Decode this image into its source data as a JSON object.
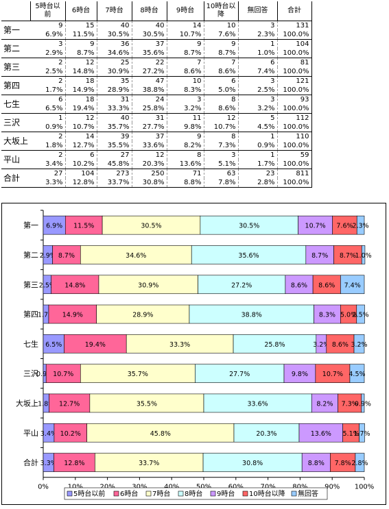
{
  "table": {
    "headers": [
      "5時台以前",
      "6時台",
      "7時台",
      "8時台",
      "9時台",
      "10時台以降",
      "無回答",
      "合計"
    ],
    "rows": [
      {
        "label": "第一",
        "counts": [
          "9",
          "15",
          "40",
          "40",
          "14",
          "10",
          "3",
          "131"
        ],
        "pcts": [
          "6.9%",
          "11.5%",
          "30.5%",
          "30.5%",
          "10.7%",
          "7.6%",
          "2.3%",
          "100.0%"
        ]
      },
      {
        "label": "第二",
        "counts": [
          "3",
          "9",
          "36",
          "37",
          "9",
          "9",
          "1",
          "104"
        ],
        "pcts": [
          "2.9%",
          "8.7%",
          "34.6%",
          "35.6%",
          "8.7%",
          "8.7%",
          "1.0%",
          "100.0%"
        ]
      },
      {
        "label": "第三",
        "counts": [
          "2",
          "12",
          "25",
          "22",
          "7",
          "7",
          "6",
          "81"
        ],
        "pcts": [
          "2.5%",
          "14.8%",
          "30.9%",
          "27.2%",
          "8.6%",
          "8.6%",
          "7.4%",
          "100.0%"
        ]
      },
      {
        "label": "第四",
        "counts": [
          "2",
          "18",
          "35",
          "47",
          "10",
          "6",
          "3",
          "121"
        ],
        "pcts": [
          "1.7%",
          "14.9%",
          "28.9%",
          "38.8%",
          "8.3%",
          "5.0%",
          "2.5%",
          "100.0%"
        ]
      },
      {
        "label": "七生",
        "counts": [
          "6",
          "18",
          "31",
          "24",
          "3",
          "8",
          "3",
          "93"
        ],
        "pcts": [
          "6.5%",
          "19.4%",
          "33.3%",
          "25.8%",
          "3.2%",
          "8.6%",
          "3.2%",
          "100.0%"
        ]
      },
      {
        "label": "三沢",
        "counts": [
          "1",
          "12",
          "40",
          "31",
          "11",
          "12",
          "5",
          "112"
        ],
        "pcts": [
          "0.9%",
          "10.7%",
          "35.7%",
          "27.7%",
          "9.8%",
          "10.7%",
          "4.5%",
          "100.0%"
        ]
      },
      {
        "label": "大坂上",
        "counts": [
          "2",
          "14",
          "39",
          "37",
          "9",
          "8",
          "1",
          "110"
        ],
        "pcts": [
          "1.8%",
          "12.7%",
          "35.5%",
          "33.6%",
          "8.2%",
          "7.3%",
          "0.9%",
          "100.0%"
        ]
      },
      {
        "label": "平山",
        "counts": [
          "2",
          "6",
          "27",
          "12",
          "8",
          "3",
          "1",
          "59"
        ],
        "pcts": [
          "3.4%",
          "10.2%",
          "45.8%",
          "20.3%",
          "13.6%",
          "5.1%",
          "1.7%",
          "100.0%"
        ]
      },
      {
        "label": "合計",
        "counts": [
          "27",
          "104",
          "273",
          "250",
          "71",
          "63",
          "23",
          "811"
        ],
        "pcts": [
          "3.3%",
          "12.8%",
          "33.7%",
          "30.8%",
          "8.8%",
          "7.8%",
          "2.8%",
          "100.0%"
        ]
      }
    ]
  },
  "chart_data": {
    "type": "bar",
    "orientation": "horizontal",
    "stacked": true,
    "categories": [
      "第一",
      "第二",
      "第三",
      "第四",
      "七生",
      "三沢",
      "大坂上",
      "平山",
      "合計"
    ],
    "series": [
      {
        "name": "5時台以前",
        "color": "#9999ff",
        "values": [
          6.9,
          2.9,
          2.5,
          1.7,
          6.5,
          0.9,
          1.8,
          3.4,
          3.3
        ]
      },
      {
        "name": "6時台",
        "color": "#ff6699",
        "values": [
          11.5,
          8.7,
          14.8,
          14.9,
          19.4,
          10.7,
          12.7,
          10.2,
          12.8
        ]
      },
      {
        "name": "7時台",
        "color": "#ffffcc",
        "values": [
          30.5,
          34.6,
          30.9,
          28.9,
          33.3,
          35.7,
          35.5,
          45.8,
          33.7
        ]
      },
      {
        "name": "8時台",
        "color": "#ccffff",
        "values": [
          30.5,
          35.6,
          27.2,
          38.8,
          25.8,
          27.7,
          33.6,
          20.3,
          30.8
        ]
      },
      {
        "name": "9時台",
        "color": "#cc99ff",
        "values": [
          10.7,
          8.7,
          8.6,
          8.3,
          3.2,
          9.8,
          8.2,
          13.6,
          8.8
        ]
      },
      {
        "name": "10時台以降",
        "color": "#ff6666",
        "values": [
          7.6,
          8.7,
          8.6,
          5.0,
          8.6,
          10.7,
          7.3,
          5.1,
          7.8
        ]
      },
      {
        "name": "無回答",
        "color": "#99ccff",
        "values": [
          2.3,
          1.0,
          7.4,
          2.5,
          3.2,
          4.5,
          0.9,
          1.7,
          2.8
        ]
      }
    ],
    "data_labels": [
      [
        "6.9%",
        "11.5%",
        "30.5%",
        "30.5%",
        "10.7%",
        "7.6%",
        "2.3%"
      ],
      [
        "2.9%",
        "8.7%",
        "34.6%",
        "35.6%",
        "8.7%",
        "8.7%",
        "1.0%"
      ],
      [
        "2.5%",
        "14.8%",
        "30.9%",
        "27.2%",
        "8.6%",
        "8.6%",
        "7.4%"
      ],
      [
        "1.7%",
        "14.9%",
        "28.9%",
        "38.8%",
        "8.3%",
        "5.0%",
        "2.5%"
      ],
      [
        "6.5%",
        "19.4%",
        "33.3%",
        "25.8%",
        "3.2%",
        "8.6%",
        "3.2%"
      ],
      [
        "0.9%",
        "10.7%",
        "35.7%",
        "27.7%",
        "9.8%",
        "10.7%",
        "4.5%"
      ],
      [
        "1.8%",
        "12.7%",
        "35.5%",
        "33.6%",
        "8.2%",
        "7.3%",
        "0.9%"
      ],
      [
        "3.4%",
        "10.2%",
        "45.8%",
        "20.3%",
        "13.6%",
        "5.1%",
        "1.7%"
      ],
      [
        "3.3%",
        "12.8%",
        "33.7%",
        "30.8%",
        "8.8%",
        "7.8%",
        "2.8%"
      ]
    ],
    "xlim": [
      0,
      100
    ],
    "x_ticks": [
      "0%",
      "10%",
      "20%",
      "30%",
      "40%",
      "50%",
      "60%",
      "70%",
      "80%",
      "90%",
      "100%"
    ],
    "grid": false,
    "legend_position": "bottom"
  }
}
